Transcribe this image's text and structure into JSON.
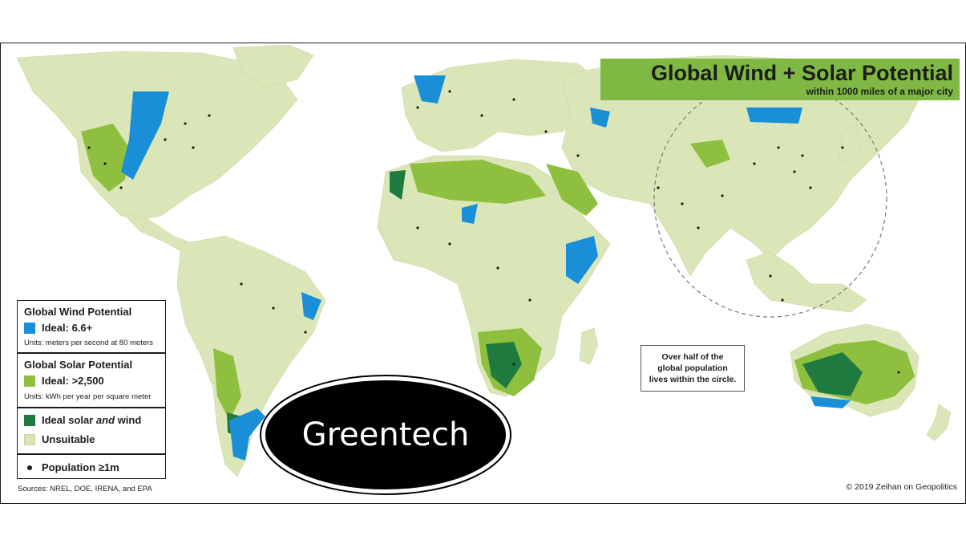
{
  "map": {
    "title": "Global Wind + Solar Potential",
    "subtitle": "within 1000 miles of a major city",
    "annotation": "Over half of the global population lives within the circle.",
    "sources": "Sources: NREL, DOE, IRENA, and EPA",
    "copyright": "© 2019 Zeihan on Geopolitics"
  },
  "legend": {
    "wind_heading": "Global Wind Potential",
    "wind_ideal": "Ideal: 6.6+",
    "wind_units": "Units: meters per second at 80 meters",
    "solar_heading": "Global Solar Potential",
    "solar_ideal": "Ideal: >2,500",
    "solar_units": "Units: kWh per year per square meter",
    "both_prefix": "Ideal solar ",
    "both_em": "and",
    "both_suffix": " wind",
    "unsuitable": "Unsuitable",
    "population": "Population ≥1m"
  },
  "overlay": {
    "badge_label": "Greentech"
  },
  "colors": {
    "land": "#dbe6b8",
    "wind": "#1a8fd8",
    "solar": "#8ebf3e",
    "both": "#1e7a3e",
    "title_bg": "#7fb842",
    "dot": "#1d1d1b"
  }
}
